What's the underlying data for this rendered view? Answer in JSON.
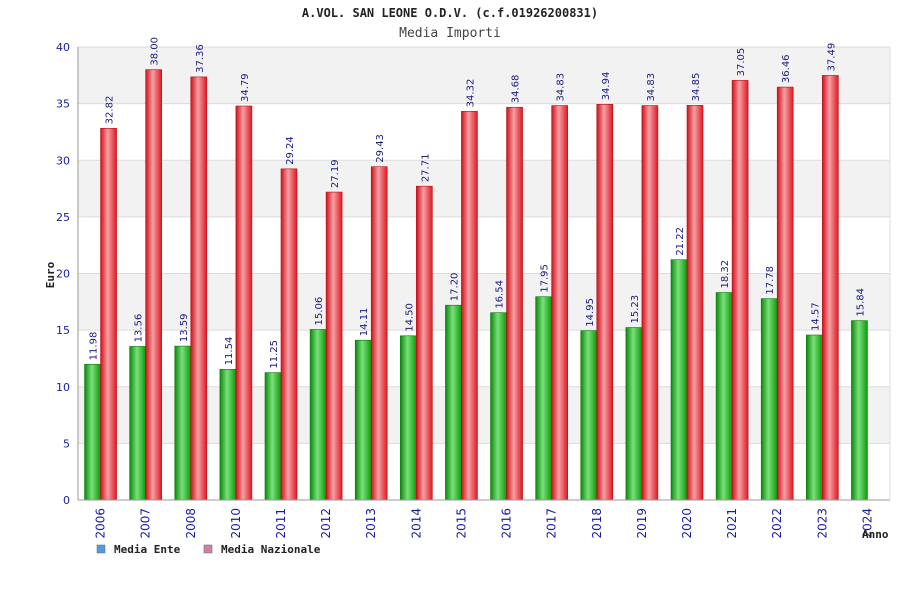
{
  "chart_data": {
    "type": "bar",
    "title": "A.VOL. SAN LEONE O.D.V. (c.f.01926200831)",
    "subtitle": "Media Importi",
    "ylabel": "Euro",
    "xlabel": "Anno",
    "ylim": [
      0,
      40
    ],
    "yticks": [
      "0",
      "5",
      "10",
      "15",
      "20",
      "25",
      "30",
      "35",
      "40"
    ],
    "grid": "horizontal, alternating bands",
    "legend_position": "bottom-left",
    "categories": [
      "2006",
      "2007",
      "2008",
      "2010",
      "2011",
      "2012",
      "2013",
      "2014",
      "2015",
      "2016",
      "2017",
      "2018",
      "2019",
      "2020",
      "2021",
      "2022",
      "2023",
      "2024"
    ],
    "series": [
      {
        "name": "Media Ente",
        "color": "#16b516",
        "legend_color": "#5599e0",
        "values": [
          11.98,
          13.56,
          13.59,
          11.54,
          11.25,
          15.06,
          14.11,
          14.5,
          17.2,
          16.54,
          17.95,
          14.95,
          15.23,
          21.22,
          18.32,
          17.78,
          14.57,
          15.84
        ],
        "labels": [
          "11.98",
          "13.56",
          "13.59",
          "11.54",
          "11.25",
          "15.06",
          "14.11",
          "14.50",
          "17.20",
          "16.54",
          "17.95",
          "14.95",
          "15.23",
          "21.22",
          "18.32",
          "17.78",
          "14.57",
          "15.84"
        ]
      },
      {
        "name": "Media Nazionale",
        "color": "#e8202a",
        "legend_color": "#d080a8",
        "values": [
          32.82,
          38.0,
          37.36,
          34.79,
          29.24,
          27.19,
          29.43,
          27.71,
          34.32,
          34.68,
          34.83,
          34.94,
          34.83,
          34.85,
          37.05,
          36.46,
          37.49,
          null
        ],
        "labels": [
          "32.82",
          "38.00",
          "37.36",
          "34.79",
          "29.24",
          "27.19",
          "29.43",
          "27.71",
          "34.32",
          "34.68",
          "34.83",
          "34.94",
          "34.83",
          "34.85",
          "37.05",
          "36.46",
          "37.49",
          null
        ]
      }
    ]
  }
}
